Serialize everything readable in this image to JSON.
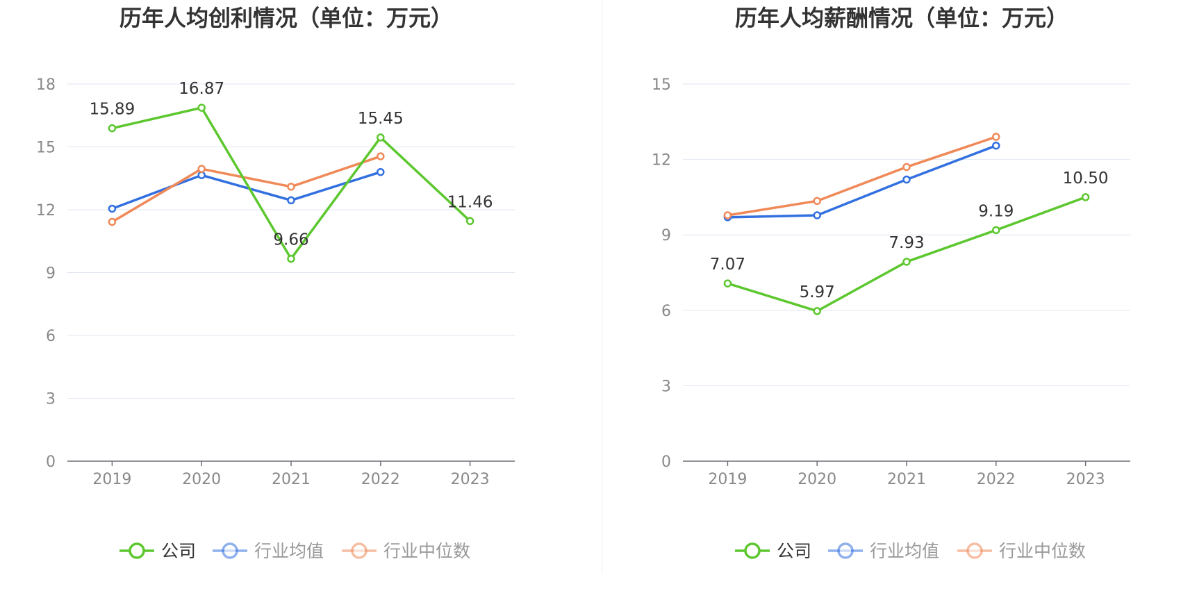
{
  "chart_data": [
    {
      "type": "line",
      "title": "历年人均创利情况（单位：万元）",
      "xlabel": "",
      "ylabel": "",
      "categories": [
        "2019",
        "2020",
        "2021",
        "2022",
        "2023"
      ],
      "ylim": [
        0,
        18
      ],
      "yticks": [
        "0",
        "3",
        "6",
        "9",
        "12",
        "15",
        "18"
      ],
      "grid": true,
      "legend_position": "bottom-center",
      "series": [
        {
          "name": "公司",
          "color": "#5cc72e",
          "values": [
            15.89,
            16.87,
            9.66,
            15.45,
            11.46
          ],
          "labels": [
            "15.89",
            "16.87",
            "9.66",
            "15.45",
            "11.46"
          ]
        },
        {
          "name": "行业均值",
          "color": "#3270e0",
          "values": [
            12.05,
            13.65,
            12.45,
            13.8,
            null
          ]
        },
        {
          "name": "行业中位数",
          "color": "#f08958",
          "values": [
            11.42,
            13.95,
            13.1,
            14.55,
            null
          ]
        }
      ]
    },
    {
      "type": "line",
      "title": "历年人均薪酬情况（单位：万元）",
      "xlabel": "",
      "ylabel": "",
      "categories": [
        "2019",
        "2020",
        "2021",
        "2022",
        "2023"
      ],
      "ylim": [
        0,
        15
      ],
      "yticks": [
        "0",
        "3",
        "6",
        "9",
        "12",
        "15"
      ],
      "grid": true,
      "legend_position": "bottom-center",
      "series": [
        {
          "name": "公司",
          "color": "#5cc72e",
          "values": [
            7.07,
            5.97,
            7.93,
            9.19,
            10.5
          ],
          "labels": [
            "7.07",
            "5.97",
            "7.93",
            "9.19",
            "10.50"
          ]
        },
        {
          "name": "行业均值",
          "color": "#3270e0",
          "values": [
            9.7,
            9.78,
            11.2,
            12.55,
            null
          ]
        },
        {
          "name": "行业中位数",
          "color": "#f08958",
          "values": [
            9.78,
            10.35,
            11.7,
            12.9,
            null
          ]
        }
      ]
    }
  ]
}
